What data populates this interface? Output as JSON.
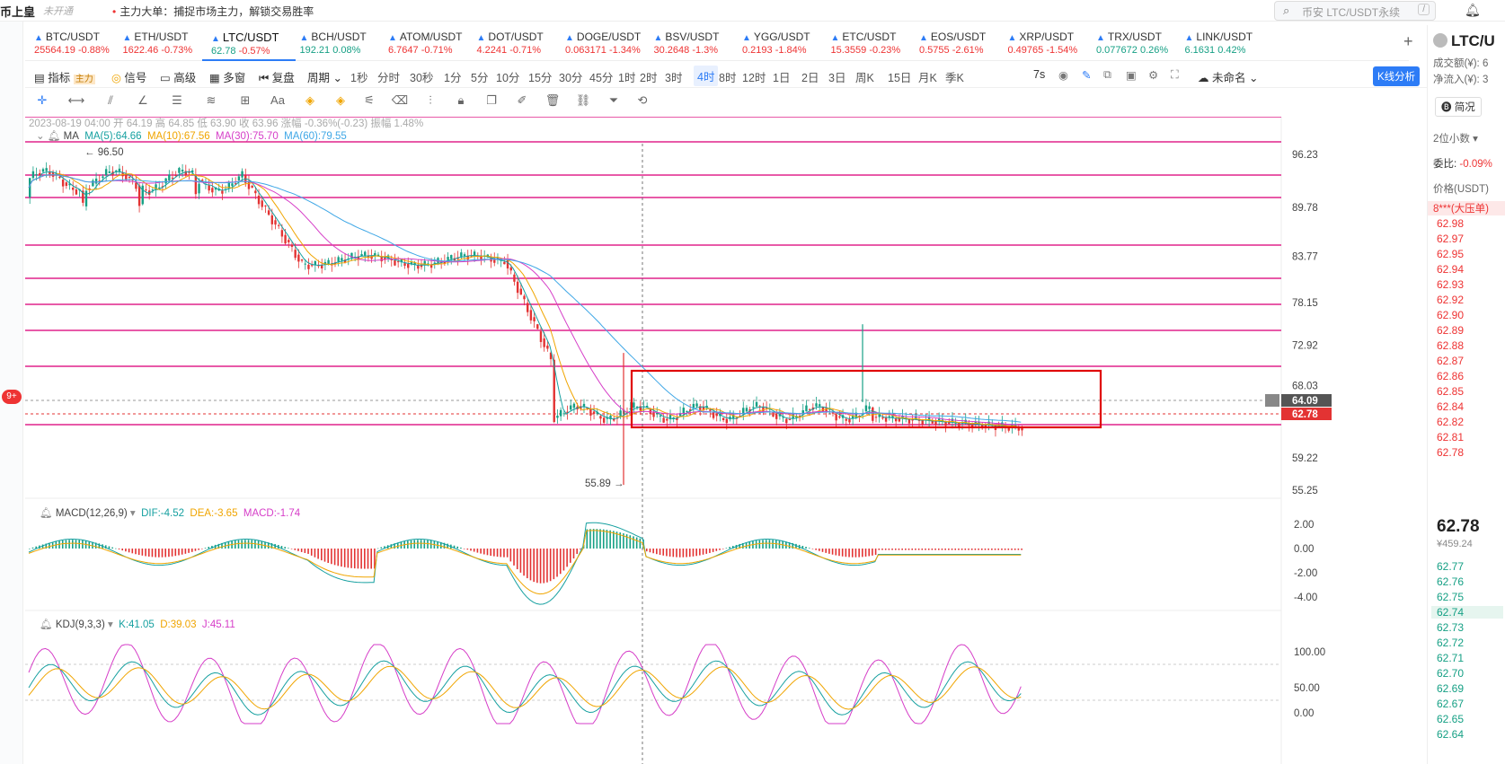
{
  "topbar": {
    "brand": "币上皇",
    "status": "未开通",
    "promo": "主力大单：捕捉市场主力，解锁交易胜率",
    "search_placeholder": "币安 LTC/USDT永续",
    "search_shortcut": "/"
  },
  "tickers": [
    {
      "symbol": "BTC/USDT",
      "price": "25564.19",
      "change": "-0.88%",
      "dir": "dn"
    },
    {
      "symbol": "ETH/USDT",
      "price": "1622.46",
      "change": "-0.73%",
      "dir": "dn"
    },
    {
      "symbol": "LTC/USDT",
      "price": "62.78",
      "change": "-0.57%",
      "dir": "dn",
      "active": true
    },
    {
      "symbol": "BCH/USDT",
      "price": "192.21",
      "change": "0.08%",
      "dir": "up"
    },
    {
      "symbol": "ATOM/USDT",
      "price": "6.7647",
      "change": "-0.71%",
      "dir": "dn"
    },
    {
      "symbol": "DOT/USDT",
      "price": "4.2241",
      "change": "-0.71%",
      "dir": "dn"
    },
    {
      "symbol": "DOGE/USDT",
      "price": "0.063171",
      "change": "-1.34%",
      "dir": "dn"
    },
    {
      "symbol": "BSV/USDT",
      "price": "30.2648",
      "change": "-1.3%",
      "dir": "dn"
    },
    {
      "symbol": "YGG/USDT",
      "price": "0.2193",
      "change": "-1.84%",
      "dir": "dn"
    },
    {
      "symbol": "ETC/USDT",
      "price": "15.3559",
      "change": "-0.23%",
      "dir": "dn"
    },
    {
      "symbol": "EOS/USDT",
      "price": "0.5755",
      "change": "-2.61%",
      "dir": "dn"
    },
    {
      "symbol": "XRP/USDT",
      "price": "0.49765",
      "change": "-1.54%",
      "dir": "dn"
    },
    {
      "symbol": "TRX/USDT",
      "price": "0.077672",
      "change": "0.26%",
      "dir": "up"
    },
    {
      "symbol": "LINK/USDT",
      "price": "6.1631",
      "change": "0.42%",
      "dir": "up"
    }
  ],
  "toolbar": {
    "indicator": "指标",
    "indicator_tag": "主力",
    "signal": "信号",
    "advanced": "高级",
    "multiwindow": "多窗",
    "replay": "复盘",
    "period": "周期",
    "intervals": [
      "1秒",
      "分时",
      "30秒",
      "1分",
      "5分",
      "10分",
      "15分",
      "30分",
      "45分",
      "1时",
      "2时",
      "3时",
      "4时",
      "8时",
      "12时",
      "1日",
      "2日",
      "3日",
      "周K",
      "15日",
      "月K",
      "季K"
    ],
    "selected_interval": "4时",
    "countdown": "7s",
    "layout_name": "未命名",
    "kline_analysis": "K线分析"
  },
  "chart": {
    "ohlc_line": "2023-08-19 04:00  开 64.19  高 64.85  低 63.90  收 63.96  涨幅 -0.36%(-0.23)  振幅 1.48%",
    "ma_title": "MA",
    "ma": [
      {
        "label": "MA(5):64.66",
        "color": "#16a0a0"
      },
      {
        "label": "MA(10):67.56",
        "color": "#f0a500"
      },
      {
        "label": "MA(30):75.70",
        "color": "#d63ec8"
      },
      {
        "label": "MA(60):79.55",
        "color": "#3fa7e6"
      }
    ],
    "high_marker": "96.50",
    "low_marker": "55.89",
    "price_ticks": [
      "96.23",
      "89.78",
      "83.77",
      "78.15",
      "72.92",
      "68.03",
      "59.22",
      "55.25"
    ],
    "tag_64": "64.09",
    "tag_last": "62.78",
    "macd_title": "MACD(12,26,9)",
    "macd_dif": "DIF:-4.52",
    "macd_dea": "DEA:-3.65",
    "macd_val": "MACD:-1.74",
    "macd_ticks": [
      "2.00",
      "0.00",
      "-2.00",
      "-4.00"
    ],
    "kdj_title": "KDJ(9,3,3)",
    "kdj_k": "K:41.05",
    "kdj_d": "D:39.03",
    "kdj_j": "J:45.11",
    "kdj_ticks": [
      "100.00",
      "50.00",
      "0.00"
    ],
    "colors": {
      "up": "#16a085",
      "down": "#e33333",
      "hline": "#e0248c",
      "box": "#e00000"
    }
  },
  "right_panel": {
    "symbol": "LTC/U",
    "turnover": "成交额(¥): 6",
    "net_inflow": "净流入(¥): 3",
    "brief_btn": "简况",
    "decimals": "2位小数",
    "ratio_label": "委比:",
    "ratio": "-0.09%",
    "price_header": "价格(USDT)",
    "big_order": "8***(大压单)",
    "asks": [
      "62.98",
      "62.97",
      "62.95",
      "62.94",
      "62.93",
      "62.92",
      "62.90",
      "62.89",
      "62.88",
      "62.87",
      "62.86",
      "62.85",
      "62.84",
      "62.82",
      "62.81",
      "62.78"
    ],
    "last_price": "62.78",
    "last_cny": "¥459.24",
    "bids": [
      "62.77",
      "62.76",
      "62.75",
      "62.74",
      "62.73",
      "62.72",
      "62.71",
      "62.70",
      "62.69",
      "62.67",
      "62.65",
      "62.64"
    ]
  }
}
